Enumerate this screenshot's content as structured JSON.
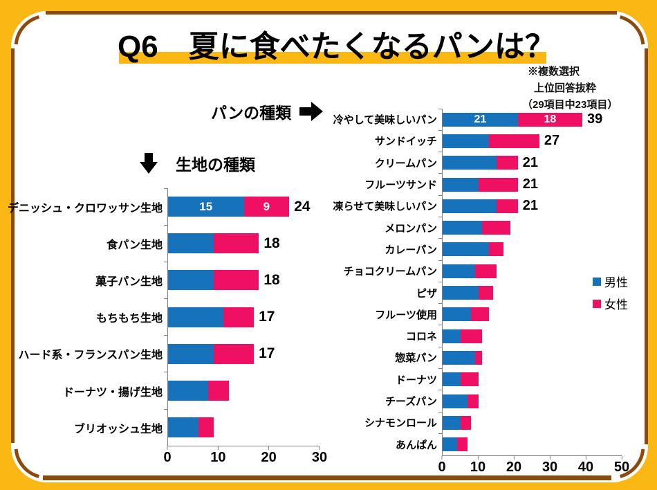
{
  "title": "Q6　夏に食べたくなるパンは？",
  "note": {
    "line1": "※複数選択",
    "line2": "上位回答抜粋",
    "line3": "（29項目中23項目）"
  },
  "pointers": {
    "bread_types": "パンの種類",
    "dough_types": "生地の種類"
  },
  "legend": {
    "male": "男性",
    "female": "女性"
  },
  "colors": {
    "male": "#1772BC",
    "female": "#EF0F63",
    "frame_yellow": "#FBB713",
    "frame_brown": "#8C4B0E"
  },
  "chart_data": [
    {
      "name": "dough-types",
      "type": "bar",
      "orientation": "horizontal-stacked",
      "title": "生地の種類",
      "series_names": [
        "男性",
        "女性"
      ],
      "xlim": [
        0,
        30
      ],
      "xticks": [
        0,
        10,
        20,
        30
      ],
      "grid": false,
      "rows": [
        {
          "label": "デニッシュ・クロワッサン生地",
          "male": 15,
          "female": 9,
          "total": 24,
          "male_label": "15",
          "female_label": "9",
          "total_label": "24"
        },
        {
          "label": "食パン生地",
          "male": 9,
          "female": 9,
          "total": 18,
          "total_label": "18"
        },
        {
          "label": "菓子パン生地",
          "male": 9,
          "female": 9,
          "total": 18,
          "total_label": "18"
        },
        {
          "label": "もちもち生地",
          "male": 11,
          "female": 6,
          "total": 17,
          "total_label": "17"
        },
        {
          "label": "ハード系・フランスパン生地",
          "male": 9,
          "female": 8,
          "total": 17,
          "total_label": "17"
        },
        {
          "label": "ドーナツ・揚げ生地",
          "male": 8,
          "female": 4,
          "total": 12,
          "total_label": ""
        },
        {
          "label": "ブリオッシュ生地",
          "male": 6,
          "female": 3,
          "total": 9,
          "total_label": ""
        }
      ]
    },
    {
      "name": "bread-types",
      "type": "bar",
      "orientation": "horizontal-stacked",
      "title": "パンの種類",
      "series_names": [
        "男性",
        "女性"
      ],
      "xlim": [
        0,
        50
      ],
      "xticks": [
        0,
        10,
        20,
        30,
        40,
        50
      ],
      "grid": false,
      "legend_position": "right",
      "rows": [
        {
          "label": "冷やして美味しいパン",
          "male": 21,
          "female": 18,
          "total": 39,
          "male_label": "21",
          "female_label": "18",
          "total_label": "39"
        },
        {
          "label": "サンドイッチ",
          "male": 13,
          "female": 14,
          "total": 27,
          "total_label": "27"
        },
        {
          "label": "クリームパン",
          "male": 15,
          "female": 6,
          "total": 21,
          "total_label": "21"
        },
        {
          "label": "フルーツサンド",
          "male": 10,
          "female": 11,
          "total": 21,
          "total_label": "21"
        },
        {
          "label": "凍らせて美味しいパン",
          "male": 15,
          "female": 6,
          "total": 21,
          "total_label": "21"
        },
        {
          "label": "メロンパン",
          "male": 11,
          "female": 8,
          "total": 19,
          "total_label": ""
        },
        {
          "label": "カレーパン",
          "male": 13,
          "female": 4,
          "total": 17,
          "total_label": ""
        },
        {
          "label": "チョコクリームパン",
          "male": 9,
          "female": 6,
          "total": 15,
          "total_label": ""
        },
        {
          "label": "ピザ",
          "male": 10,
          "female": 4,
          "total": 14,
          "total_label": ""
        },
        {
          "label": "フルーツ使用",
          "male": 8,
          "female": 5,
          "total": 13,
          "total_label": ""
        },
        {
          "label": "コロネ",
          "male": 5,
          "female": 6,
          "total": 11,
          "total_label": ""
        },
        {
          "label": "惣菜パン",
          "male": 9,
          "female": 2,
          "total": 11,
          "total_label": ""
        },
        {
          "label": "ドーナツ",
          "male": 5,
          "female": 5,
          "total": 10,
          "total_label": ""
        },
        {
          "label": "チーズパン",
          "male": 7,
          "female": 3,
          "total": 10,
          "total_label": ""
        },
        {
          "label": "シナモンロール",
          "male": 5,
          "female": 3,
          "total": 8,
          "total_label": ""
        },
        {
          "label": "あんぱん",
          "male": 4,
          "female": 3,
          "total": 7,
          "total_label": ""
        }
      ]
    }
  ]
}
